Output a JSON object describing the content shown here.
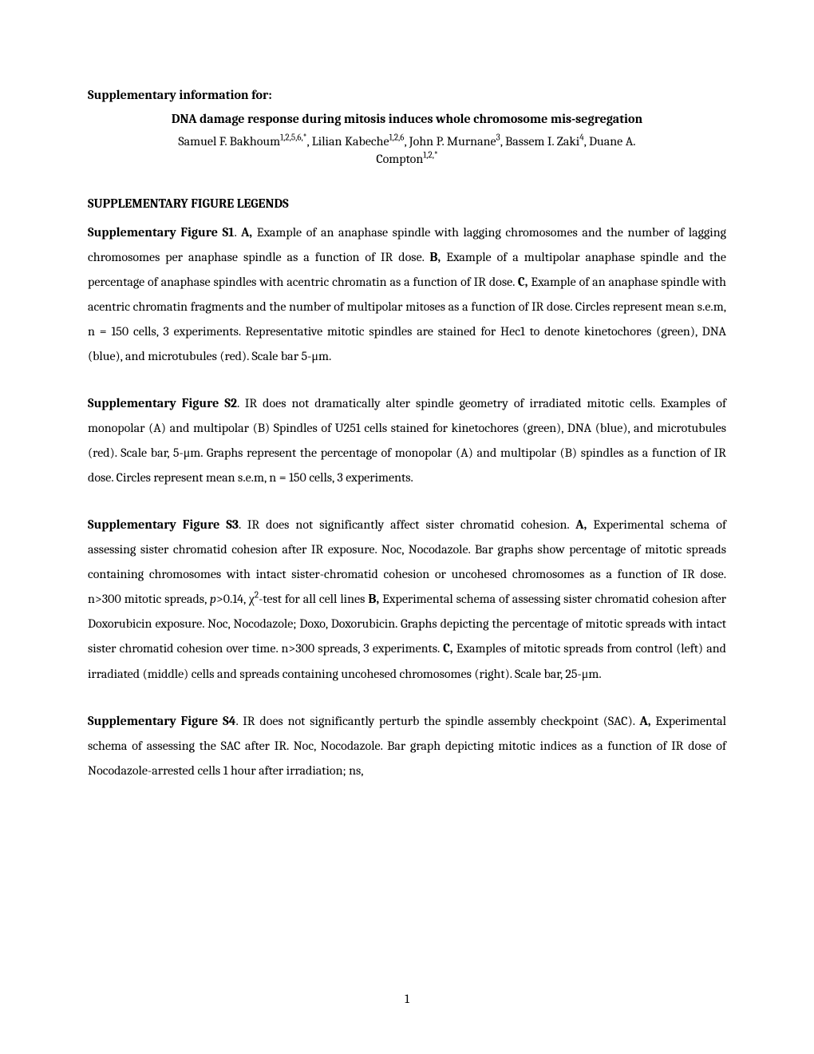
{
  "header": {
    "supp_for": "Supplementary information for:",
    "title": "DNA damage response during mitosis induces whole chromosome mis-segregation",
    "authors_pre": "Samuel F. Bakhoum",
    "authors_sup1": "1,2,5,6,*",
    "authors_mid1": ", Lilian Kabeche",
    "authors_sup2": "1,2,6",
    "authors_mid2": ", John P. Murnane",
    "authors_sup3": "3",
    "authors_mid3": ", Bassem I. Zaki",
    "authors_sup4": "4",
    "authors_mid4": ", Duane A.",
    "authors_last": "Compton",
    "authors_sup5": "1,2,*"
  },
  "section_heading": "SUPPLEMENTARY FIGURE LEGENDS",
  "figS1": {
    "t1": "Supplementary Figure S1",
    "t2": ". ",
    "t3": "A,",
    "t4": "  Example of an anaphase spindle with lagging chromosomes and the number of lagging chromosomes per anaphase spindle as a function of IR dose. ",
    "t5": "B,",
    "t6": "  Example of a multipolar anaphase spindle and the percentage of anaphase spindles with acentric chromatin as a function of IR dose. ",
    "t7": "C,",
    "t8": " Example of an anaphase spindle with acentric chromatin fragments and the number of multipolar mitoses as a function of IR dose. Circles represent mean    s.e.m, n = 150 cells, 3 experiments. Representative mitotic spindles are stained for Hec1 to denote kinetochores (green), DNA (blue), and microtubules (red). Scale bar 5-μm."
  },
  "figS2": {
    "t1": "Supplementary Figure S2",
    "t2": ". IR does not dramatically alter spindle geometry of irradiated mitotic cells. Examples of monopolar (A) and multipolar (B) Spindles of U251 cells stained for kinetochores (green), DNA (blue), and microtubules (red). Scale bar, 5-μm. Graphs represent the percentage of monopolar (A) and multipolar (B) spindles as a function of IR dose. Circles represent mean    s.e.m, n = 150 cells, 3 experiments."
  },
  "figS3": {
    "t1": "Supplementary Figure S3",
    "t2": ". IR does not significantly affect sister chromatid cohesion. ",
    "t3": "A,",
    "t4": " Experimental schema of assessing sister chromatid cohesion after IR exposure. Noc, Nocodazole. Bar graphs show percentage of mitotic spreads containing chromosomes with intact sister-chromatid cohesion or uncohesed chromosomes as a function of IR dose. n>300 mitotic spreads, ",
    "t5": "p",
    "t6": ">0.14, χ",
    "t7": "2",
    "t8": "-test for all cell lines ",
    "t9": "B,",
    "t10": " Experimental schema of assessing sister chromatid cohesion after Doxorubicin exposure. Noc, Nocodazole; Doxo, Doxorubicin. Graphs depicting the percentage of mitotic spreads with intact sister chromatid cohesion over time. n>300 spreads, 3 experiments. ",
    "t11": "C,",
    "t12": " Examples of mitotic spreads from control (left) and irradiated (middle) cells and spreads containing uncohesed chromosomes (right). Scale bar, 25-μm."
  },
  "figS4": {
    "t1": "Supplementary Figure S4",
    "t2": ". IR does not significantly perturb the spindle assembly checkpoint (SAC). ",
    "t3": "A,",
    "t4": "  Experimental schema of assessing the SAC after IR. Noc, Nocodazole. Bar graph depicting mitotic indices as a function of IR dose of Nocodazole-arrested cells 1 hour after irradiation; ns,"
  },
  "page_number": "1"
}
